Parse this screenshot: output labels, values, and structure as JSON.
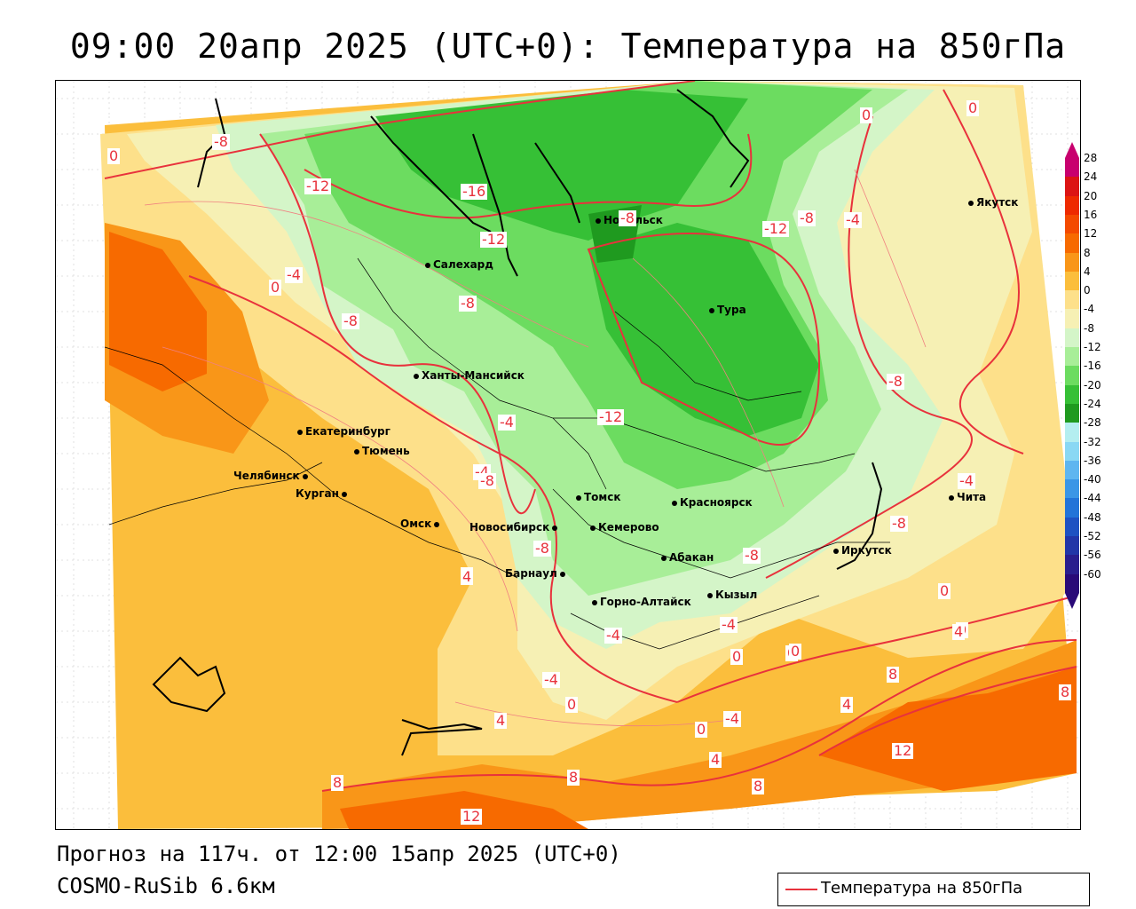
{
  "title": "09:00 20апр 2025 (UTC+0): Температура на 850гПа",
  "footer": {
    "forecast": "Прогноз на 117ч. от 12:00 15апр 2025 (UTC+0)",
    "model": "COSMO-RuSib 6.6км"
  },
  "legend": {
    "line_label": "Температура на 850гПа",
    "line_color": "#e8323c"
  },
  "colorbar": {
    "ticks": [
      "28",
      "24",
      "20",
      "16",
      "12",
      "8",
      "4",
      "0",
      "-4",
      "-8",
      "-12",
      "-16",
      "-20",
      "-24",
      "-28",
      "-32",
      "-36",
      "-40",
      "-44",
      "-48",
      "-52",
      "-56",
      "-60"
    ],
    "colors": [
      "#c8006e",
      "#dc1414",
      "#ee2a00",
      "#f44a00",
      "#f76a00",
      "#f99618",
      "#fbbe3c",
      "#fde08a",
      "#f6f0b4",
      "#d4f5c8",
      "#a8ee98",
      "#6cdc60",
      "#36c036",
      "#1f9a1f",
      "#b4eef0",
      "#8ad8f4",
      "#5eb6f0",
      "#3a96e6",
      "#2274d8",
      "#1e52c2",
      "#2236a8",
      "#2a1e8e",
      "#2a0a78"
    ]
  },
  "cities": [
    "Салехард",
    "Норильск",
    "Якутск",
    "Тура",
    "Ханты-Мансийск",
    "Екатеринбург",
    "Тюмень",
    "Челябинск",
    "Курган",
    "Омск",
    "Новосибирск",
    "Томск",
    "Кемерово",
    "Красноярск",
    "Барнаул",
    "Абакан",
    "Горно-Алтайск",
    "Кызыл",
    "Иркутск",
    "Чита"
  ],
  "contour_labels": [
    "-8",
    "0",
    "-12",
    "-16",
    "-12",
    "-8",
    "-4",
    "0",
    "-4",
    "0",
    "-8",
    "-4",
    "0",
    "-8",
    "-4",
    "-8",
    "-12",
    "-12",
    "-8",
    "-4",
    "-8",
    "0",
    "-8",
    "-8",
    "4",
    "0",
    "-4",
    "0",
    "4",
    "-4",
    "0",
    "-4",
    "-4",
    "0",
    "4",
    "0",
    "4",
    "8",
    "8",
    "12",
    "8",
    "12",
    "4",
    "8",
    "8",
    "4",
    "0",
    "-8"
  ]
}
